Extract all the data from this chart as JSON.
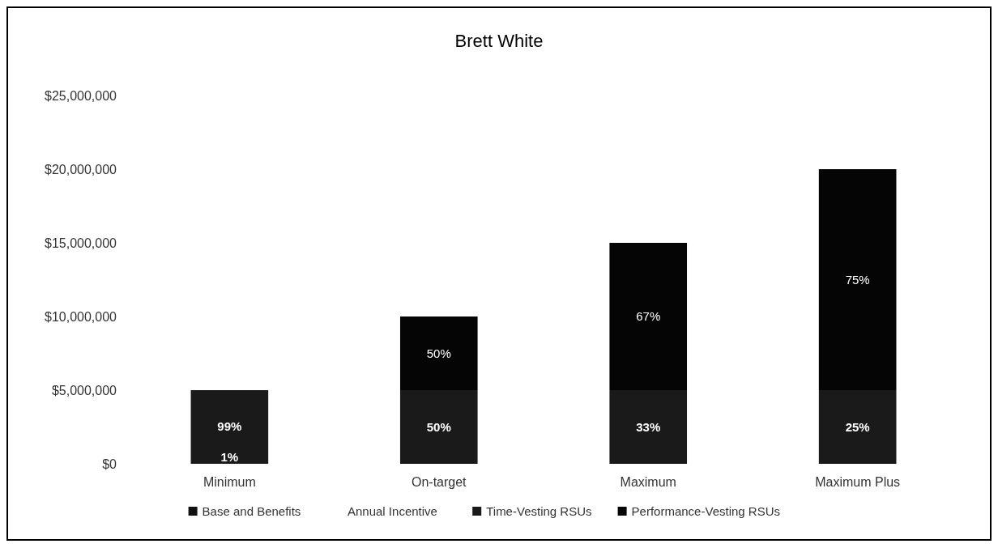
{
  "chart_data": {
    "type": "bar",
    "stacked": true,
    "title": "Brett White",
    "categories": [
      "Minimum",
      "On-target",
      "Maximum",
      "Maximum Plus"
    ],
    "series": [
      {
        "name": "Base and Benefits",
        "color": "#111111",
        "values": [
          50000,
          null,
          null,
          null
        ]
      },
      {
        "name": "Annual Incentive",
        "values": [
          null,
          null,
          null,
          null
        ]
      },
      {
        "name": "Time-Vesting RSUs",
        "color": "#1a1a1a",
        "values": [
          4950000,
          5000000,
          5000000,
          5000000
        ]
      },
      {
        "name": "Performance-Vesting RSUs",
        "color": "#050505",
        "values": [
          null,
          5000000,
          10000000,
          15000000
        ]
      }
    ],
    "annotations": [
      "1%",
      "99%",
      "50%",
      "33%",
      "25%",
      "50%",
      "67%",
      "75%"
    ],
    "ylim": [
      0,
      25000000
    ],
    "yticks": [
      {
        "value": 0,
        "label": "$0"
      },
      {
        "value": 5000000,
        "label": "$5,000,000"
      },
      {
        "value": 10000000,
        "label": "$10,000,000"
      },
      {
        "value": 15000000,
        "label": "$15,000,000"
      },
      {
        "value": 20000000,
        "label": "$20,000,000"
      },
      {
        "value": 25000000,
        "label": "$25,000,000"
      }
    ],
    "grid": false,
    "legend": "bottom"
  }
}
